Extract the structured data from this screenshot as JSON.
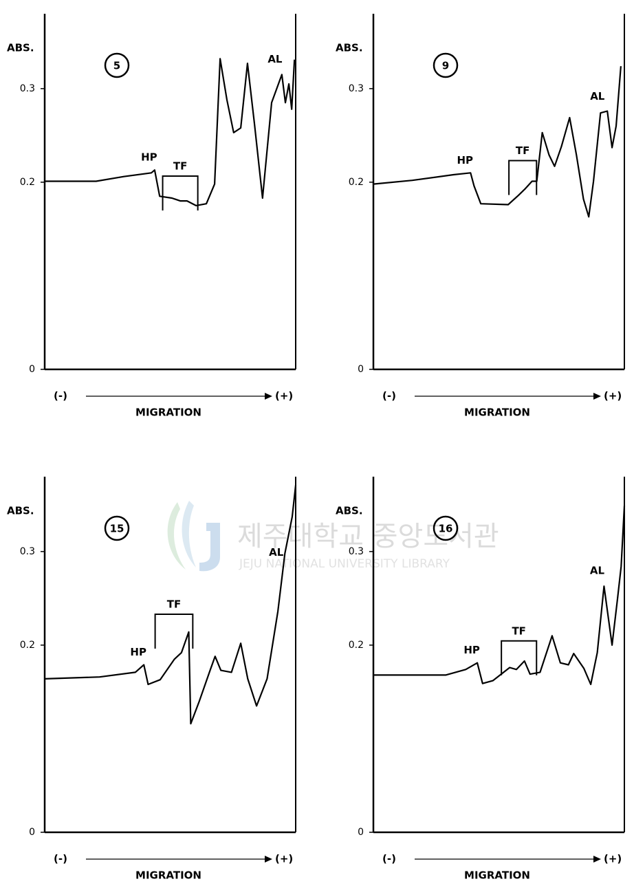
{
  "chart_data": [
    {
      "type": "line",
      "panel_label": "5",
      "y_label": "ABS.",
      "x_label": "MIGRATION",
      "x_left": "(-)",
      "x_right": "(+)",
      "annotations": [
        "HP",
        "TF",
        "AL"
      ],
      "x": [
        0,
        20.5,
        31.5,
        42.5,
        43.8,
        45.8,
        50.7,
        54,
        56.7,
        60.3,
        64.4,
        67.7,
        69.9,
        72.6,
        75.3,
        78.1,
        80.8,
        83.6,
        86.8,
        90.4,
        94.5,
        95.9,
        97.3,
        98.4,
        99.5
      ],
      "series": [
        {
          "color": "#000000",
          "values": [
            0.201,
            0.201,
            0.206,
            0.21,
            0.213,
            0.185,
            0.183,
            0.18,
            0.18,
            0.175,
            0.177,
            0.198,
            0.332,
            0.288,
            0.253,
            0.258,
            0.327,
            0.262,
            0.183,
            0.285,
            0.315,
            0.285,
            0.305,
            0.278,
            0.331
          ]
        }
      ],
      "xlim": [
        0,
        100
      ],
      "ylim": [
        0,
        0.38
      ],
      "yticks": [
        0,
        0.2,
        0.3
      ]
    },
    {
      "type": "line",
      "panel_label": "9",
      "y_label": "ABS.",
      "x_label": "MIGRATION",
      "x_left": "(-)",
      "x_right": "(+)",
      "annotations": [
        "HP",
        "TF",
        "AL"
      ],
      "x": [
        0,
        15.5,
        31.9,
        38.7,
        40.1,
        42.8,
        53.7,
        57.8,
        60.5,
        63.2,
        65.1,
        67.3,
        70,
        72.2,
        74.9,
        78.2,
        80.9,
        83.7,
        85.8,
        87.7,
        90.5,
        93.2,
        95.1,
        96.7,
        98.6
      ],
      "series": [
        {
          "color": "#000000",
          "values": [
            0.198,
            0.202,
            0.208,
            0.21,
            0.196,
            0.177,
            0.176,
            0.186,
            0.193,
            0.201,
            0.201,
            0.253,
            0.229,
            0.217,
            0.238,
            0.269,
            0.229,
            0.182,
            0.163,
            0.201,
            0.274,
            0.276,
            0.237,
            0.26,
            0.324
          ]
        }
      ],
      "xlim": [
        0,
        100
      ],
      "ylim": [
        0,
        0.38
      ],
      "yticks": [
        0,
        0.2,
        0.3
      ]
    },
    {
      "type": "line",
      "panel_label": "15",
      "y_label": "ABS.",
      "x_label": "MIGRATION",
      "x_left": "(-)",
      "x_right": "(+)",
      "annotations": [
        "HP",
        "TF",
        "AL"
      ],
      "x": [
        0,
        21.9,
        36.1,
        39.5,
        41.2,
        46,
        51.7,
        54.5,
        57.4,
        58.2,
        61.6,
        65.9,
        67.9,
        70.2,
        74.4,
        78.1,
        80.9,
        84.4,
        88.6,
        92.9,
        95.7,
        98.6,
        100
      ],
      "series": [
        {
          "color": "#000000",
          "values": [
            0.164,
            0.166,
            0.171,
            0.179,
            0.158,
            0.163,
            0.185,
            0.192,
            0.214,
            0.116,
            0.14,
            0.173,
            0.188,
            0.173,
            0.171,
            0.202,
            0.164,
            0.135,
            0.164,
            0.236,
            0.298,
            0.337,
            0.371
          ]
        }
      ],
      "xlim": [
        0,
        100
      ],
      "ylim": [
        0,
        0.38
      ],
      "yticks": [
        0,
        0.2,
        0.3
      ]
    },
    {
      "type": "line",
      "panel_label": "16",
      "y_label": "ABS.",
      "x_label": "MIGRATION",
      "x_left": "(-)",
      "x_right": "(+)",
      "annotations": [
        "HP",
        "TF",
        "AL"
      ],
      "x": [
        0,
        28.8,
        36.8,
        41.4,
        43.5,
        47.6,
        54.3,
        57,
        60.2,
        62.4,
        66.4,
        71.2,
        74.5,
        77.7,
        79.8,
        83.9,
        86.6,
        89.2,
        91.9,
        95.1,
        97.3,
        98.7,
        100
      ],
      "series": [
        {
          "color": "#000000",
          "values": [
            0.168,
            0.168,
            0.174,
            0.181,
            0.159,
            0.162,
            0.176,
            0.174,
            0.183,
            0.169,
            0.171,
            0.21,
            0.181,
            0.179,
            0.191,
            0.175,
            0.158,
            0.192,
            0.263,
            0.2,
            0.25,
            0.284,
            0.349
          ]
        }
      ],
      "xlim": [
        0,
        100
      ],
      "ylim": [
        0,
        0.38
      ],
      "yticks": [
        0,
        0.2,
        0.3
      ]
    }
  ],
  "watermark": {
    "korean": "제주대학교 중앙도서관",
    "english": "JEJU NATIONAL UNIVERSITY LIBRARY"
  }
}
